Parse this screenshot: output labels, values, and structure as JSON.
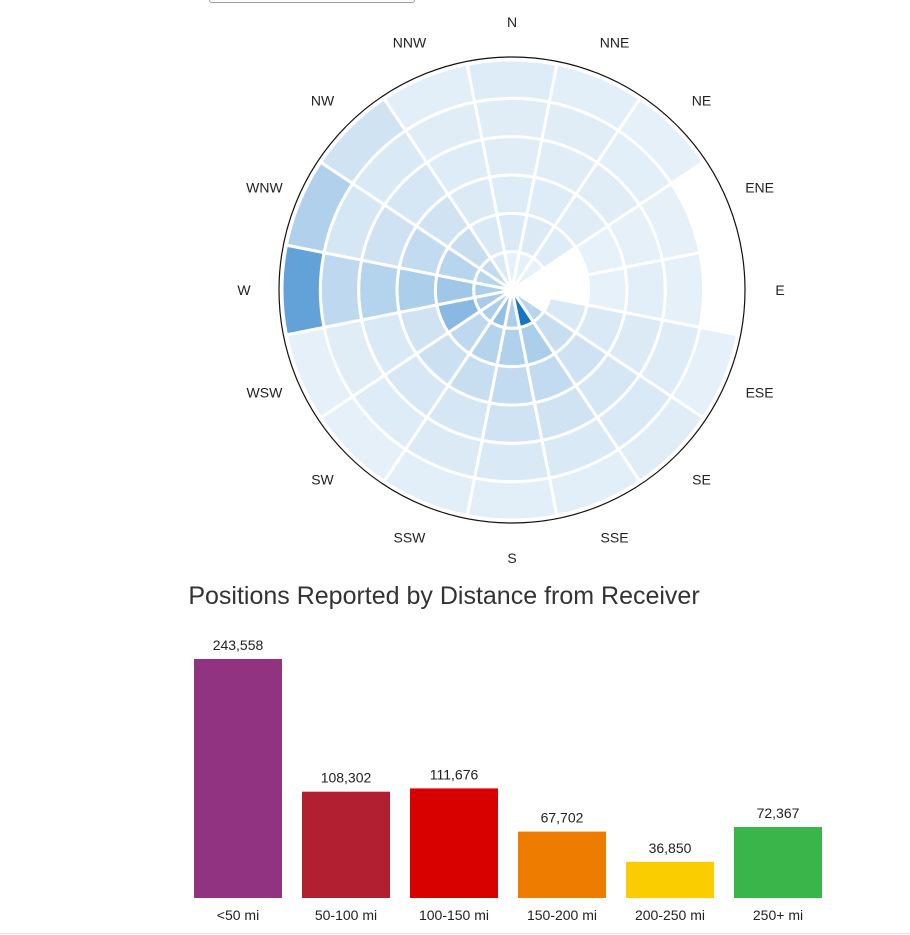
{
  "controls": {
    "top_select": ""
  },
  "chart_data": [
    {
      "type": "polar-heatmap",
      "title": "",
      "directions": [
        "N",
        "NNE",
        "NE",
        "ENE",
        "E",
        "ESE",
        "SE",
        "SSE",
        "S",
        "SSW",
        "SW",
        "WSW",
        "W",
        "WNW",
        "NW",
        "NNW"
      ],
      "rings": 6,
      "color_scale": [
        "#ffffff",
        "#0a6fc2"
      ],
      "intensity": [
        [
          0.05,
          0.1,
          0.08,
          0.07,
          0.07,
          0.08
        ],
        [
          0.05,
          0.09,
          0.08,
          0.07,
          0.07,
          0.06
        ],
        [
          0.04,
          0.08,
          0.07,
          0.07,
          0.06,
          0.05
        ],
        [
          0.0,
          0.0,
          0.04,
          0.05,
          0.05,
          0.0
        ],
        [
          0.0,
          0.0,
          0.04,
          0.06,
          0.05,
          0.0
        ],
        [
          0.0,
          0.1,
          0.1,
          0.09,
          0.08,
          0.05
        ],
        [
          0.25,
          0.18,
          0.15,
          0.12,
          0.1,
          0.07
        ],
        [
          0.95,
          0.3,
          0.2,
          0.14,
          0.1,
          0.06
        ],
        [
          0.3,
          0.28,
          0.2,
          0.14,
          0.1,
          0.06
        ],
        [
          0.4,
          0.26,
          0.18,
          0.12,
          0.09,
          0.06
        ],
        [
          0.3,
          0.22,
          0.16,
          0.11,
          0.08,
          0.05
        ],
        [
          0.32,
          0.45,
          0.14,
          0.1,
          0.07,
          0.05
        ],
        [
          0.3,
          0.35,
          0.3,
          0.26,
          0.22,
          0.62
        ],
        [
          0.25,
          0.25,
          0.2,
          0.15,
          0.12,
          0.28
        ],
        [
          0.2,
          0.18,
          0.14,
          0.12,
          0.1,
          0.14
        ],
        [
          0.1,
          0.1,
          0.09,
          0.08,
          0.07,
          0.06
        ]
      ]
    },
    {
      "type": "bar",
      "title": "Positions Reported by Distance from Receiver",
      "categories": [
        "<50 mi",
        "50-100 mi",
        "100-150 mi",
        "150-200 mi",
        "200-250 mi",
        "250+ mi"
      ],
      "values": [
        243558,
        108302,
        111676,
        67702,
        36850,
        72367
      ],
      "data_labels": [
        "243,558",
        "108,302",
        "111,676",
        "67,702",
        "36,850",
        "72,367"
      ],
      "colors": [
        "#923381",
        "#b21f31",
        "#d90000",
        "#ee7c00",
        "#f9cd00",
        "#3ab54a"
      ],
      "ylim": [
        0,
        243558
      ],
      "grid": false,
      "legend": "none"
    }
  ]
}
